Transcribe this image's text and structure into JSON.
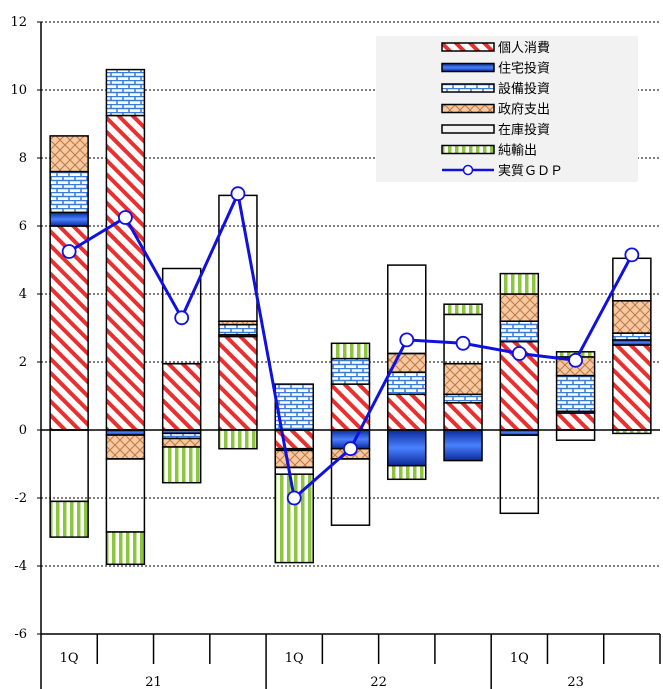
{
  "chart_data": {
    "type": "bar",
    "stacked": true,
    "ylim": [
      -6,
      12
    ],
    "yticks": [
      "12",
      "10",
      "8",
      "6",
      "4",
      "2",
      "0",
      "-2",
      "-4",
      "-6"
    ],
    "grid": "horizontal dotted",
    "legend_position": "top-right",
    "colors": {
      "consumption": "#e83030",
      "housing": "#1f4fd0",
      "equipment": "#3a7ad8",
      "government": "#e0a070",
      "inventory": "#ffffff",
      "net_exports": "#8cc63f",
      "gdp_line": "#1010e0"
    },
    "periods": [
      "2021Q1",
      "2021Q2",
      "2021Q3",
      "2021Q4",
      "2022Q1",
      "2022Q2",
      "2022Q3",
      "2022Q4",
      "2023Q1",
      "2023Q2",
      "2023Q3"
    ],
    "quarter_labels": [
      {
        "index": 0,
        "text": "1Q"
      },
      {
        "index": 4,
        "text": "1Q"
      },
      {
        "index": 8,
        "text": "1Q"
      }
    ],
    "year_labels": [
      {
        "year": "21",
        "center": 1.5
      },
      {
        "year": "22",
        "center": 5.5
      },
      {
        "year": "23",
        "center": 9.0
      }
    ],
    "series": [
      {
        "name": "個人消費",
        "key": "consumption",
        "values": [
          6.0,
          9.25,
          1.95,
          2.75,
          -0.55,
          1.35,
          1.05,
          0.8,
          2.6,
          0.5,
          2.5
        ]
      },
      {
        "name": "住宅投資",
        "key": "housing",
        "values": [
          0.4,
          -0.15,
          -0.1,
          0.05,
          -0.05,
          -0.55,
          -1.05,
          -0.9,
          -0.15,
          0.05,
          0.15
        ]
      },
      {
        "name": "設備投資",
        "key": "equipment",
        "values": [
          1.2,
          1.35,
          -0.15,
          0.3,
          1.35,
          0.75,
          0.65,
          0.25,
          0.6,
          1.05,
          0.2
        ]
      },
      {
        "name": "政府支出",
        "key": "government",
        "values": [
          1.05,
          -0.7,
          -0.25,
          0.1,
          -0.5,
          -0.3,
          0.55,
          0.9,
          0.8,
          0.55,
          0.95
        ]
      },
      {
        "name": "在庫投資",
        "key": "inventory",
        "values": [
          -2.1,
          -2.15,
          2.8,
          3.7,
          -0.2,
          -1.95,
          2.6,
          1.45,
          -2.3,
          -0.3,
          1.25
        ]
      },
      {
        "name": "純輸出",
        "key": "net_exports",
        "values": [
          -1.05,
          -0.95,
          -1.05,
          -0.55,
          -2.6,
          0.45,
          -0.4,
          0.3,
          0.6,
          0.15,
          -0.1
        ]
      }
    ],
    "line": {
      "name": "実質ＧＤＰ",
      "key": "gdp_line",
      "values": [
        5.25,
        6.25,
        3.3,
        6.95,
        -2.0,
        -0.55,
        2.65,
        2.55,
        2.25,
        2.05,
        5.15
      ]
    }
  }
}
